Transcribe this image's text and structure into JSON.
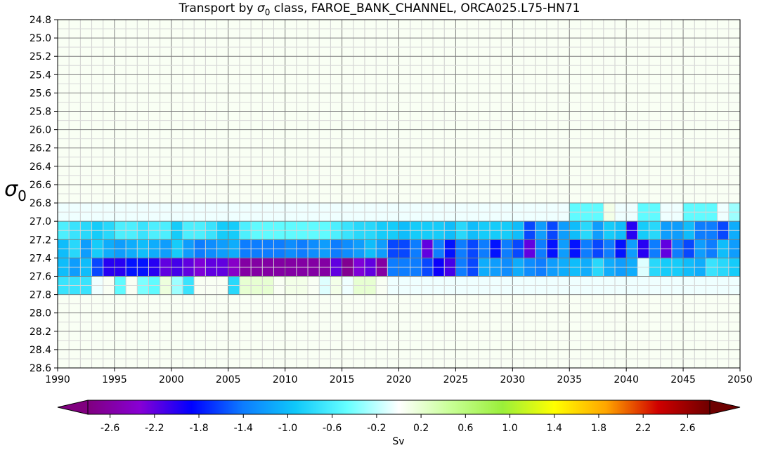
{
  "chart_data": {
    "type": "heatmap",
    "title_prefix": "Transport by ",
    "title_symbol": "σ",
    "title_sub": "0",
    "title_suffix": " class, FAROE_BANK_CHANNEL, ORCA025.L75-HN71",
    "ylabel_symbol": "σ",
    "ylabel_sub": "0",
    "x_ticks": [
      1990,
      1995,
      2000,
      2005,
      2010,
      2015,
      2020,
      2025,
      2030,
      2035,
      2040,
      2045,
      2050
    ],
    "xlim": [
      1990,
      2050
    ],
    "y_ticks": [
      24.8,
      25.0,
      25.2,
      25.4,
      25.6,
      25.8,
      26.0,
      26.2,
      26.4,
      26.6,
      26.8,
      27.0,
      27.2,
      27.4,
      27.6,
      27.8,
      28.0,
      28.2,
      28.4,
      28.6
    ],
    "ylim": [
      24.8,
      28.6
    ],
    "y_inverted": true,
    "grid": true,
    "years": [
      1990,
      1991,
      1992,
      1993,
      1994,
      1995,
      1996,
      1997,
      1998,
      1999,
      2000,
      2001,
      2002,
      2003,
      2004,
      2005,
      2006,
      2007,
      2008,
      2009,
      2010,
      2011,
      2012,
      2013,
      2014,
      2015,
      2016,
      2017,
      2018,
      2019,
      2020,
      2021,
      2022,
      2023,
      2024,
      2025,
      2026,
      2027,
      2028,
      2029,
      2030,
      2031,
      2032,
      2033,
      2034,
      2035,
      2036,
      2037,
      2038,
      2039,
      2040,
      2041,
      2042,
      2043,
      2044,
      2045,
      2046,
      2047,
      2048,
      2049
    ],
    "density_bins": [
      "26.8-27.0",
      "27.0-27.2",
      "27.2-27.4",
      "27.4-27.6",
      "27.6-27.8"
    ],
    "values": [
      [
        -0.05,
        -0.05,
        -0.05,
        -0.05,
        -0.05,
        -0.05,
        -0.05,
        -0.05,
        -0.05,
        -0.05,
        -0.05,
        -0.05,
        -0.05,
        -0.05,
        -0.05,
        -0.05,
        -0.05,
        -0.05,
        -0.05,
        -0.05,
        -0.05,
        -0.05,
        -0.05,
        -0.05,
        -0.05,
        -0.05,
        -0.05,
        -0.05,
        -0.05,
        -0.05,
        -0.05,
        -0.05,
        -0.05,
        -0.05,
        -0.05,
        -0.05,
        -0.05,
        -0.05,
        -0.05,
        -0.05,
        -0.05,
        -0.05,
        -0.05,
        -0.05,
        -0.05,
        -0.5,
        -0.5,
        -0.5,
        0.1,
        -0.05,
        -0.05,
        -0.5,
        -0.5,
        -0.05,
        -0.05,
        -0.5,
        -0.5,
        -0.5,
        -0.05,
        -0.3
      ],
      [
        -0.6,
        -0.7,
        -0.8,
        -0.9,
        -0.8,
        -0.6,
        -0.6,
        -0.7,
        -0.6,
        -0.6,
        -0.9,
        -0.6,
        -0.6,
        -0.7,
        -0.9,
        -0.9,
        -0.6,
        -0.5,
        -0.5,
        -0.5,
        -0.5,
        -0.5,
        -0.5,
        -0.5,
        -0.6,
        -0.7,
        -0.8,
        -0.8,
        -0.9,
        -0.9,
        -1.0,
        -0.9,
        -0.9,
        -0.9,
        -1.0,
        -0.8,
        -1.0,
        -0.9,
        -0.9,
        -0.9,
        -1.0,
        -1.6,
        -1.2,
        -1.6,
        -1.2,
        -1.0,
        -0.8,
        -1.2,
        -0.9,
        -1.0,
        -2.0,
        -0.9,
        -0.8,
        -1.2,
        -1.2,
        -1.0,
        -1.4,
        -1.4,
        -1.6,
        -1.1
      ],
      [
        -1.0,
        -0.8,
        -1.2,
        -0.9,
        -1.1,
        -1.2,
        -1.1,
        -1.0,
        -1.1,
        -1.2,
        -0.9,
        -1.2,
        -1.4,
        -1.3,
        -1.2,
        -1.1,
        -1.4,
        -1.4,
        -1.4,
        -1.4,
        -1.3,
        -1.4,
        -1.3,
        -1.2,
        -1.4,
        -1.3,
        -1.2,
        -1.0,
        -1.2,
        -1.6,
        -1.6,
        -1.4,
        -2.2,
        -1.4,
        -1.8,
        -1.4,
        -1.6,
        -1.4,
        -1.8,
        -1.4,
        -1.6,
        -2.2,
        -1.4,
        -1.8,
        -1.2,
        -1.8,
        -1.4,
        -1.6,
        -1.4,
        -1.8,
        -1.2,
        -2.0,
        -1.4,
        -2.2,
        -1.4,
        -1.6,
        -1.2,
        -1.4,
        -1.0,
        -1.2
      ],
      [
        -1.0,
        -1.2,
        -1.0,
        -1.6,
        -2.0,
        -2.0,
        -1.8,
        -1.8,
        -2.0,
        -2.2,
        -2.1,
        -2.2,
        -2.3,
        -2.2,
        -2.2,
        -2.4,
        -2.6,
        -2.6,
        -2.6,
        -2.6,
        -2.6,
        -2.6,
        -2.6,
        -2.6,
        -2.2,
        -2.7,
        -2.3,
        -2.2,
        -2.6,
        -1.4,
        -1.4,
        -1.4,
        -1.6,
        -1.9,
        -2.1,
        -1.4,
        -1.6,
        -1.1,
        -1.2,
        -1.3,
        -1.1,
        -1.3,
        -1.4,
        -1.2,
        -1.1,
        -1.0,
        -1.1,
        -0.8,
        -1.1,
        -1.2,
        -1.1,
        -0.1,
        -0.8,
        -0.9,
        -0.9,
        -1.0,
        -1.1,
        -0.7,
        -0.8,
        -0.9
      ],
      [
        -0.7,
        -0.7,
        -0.7,
        -0.05,
        0.05,
        -0.5,
        0.05,
        -0.4,
        -0.5,
        0.15,
        -0.3,
        -0.7,
        0.05,
        0.05,
        0.05,
        -0.8,
        0.2,
        0.2,
        0.2,
        0.05,
        0.1,
        0.1,
        0.05,
        -0.1,
        0.1,
        -0.05,
        0.2,
        0.2,
        0.05,
        -0.05,
        -0.05,
        -0.05,
        -0.05,
        -0.05,
        -0.05,
        -0.05,
        -0.05,
        -0.05,
        -0.05,
        -0.05,
        -0.05,
        -0.05,
        -0.05,
        -0.05,
        -0.05,
        -0.05,
        -0.05,
        -0.05,
        -0.05,
        -0.05,
        -0.05,
        -0.05,
        -0.05,
        -0.05,
        -0.05,
        -0.05,
        -0.05,
        -0.05,
        -0.05,
        -0.05
      ]
    ],
    "colorbar": {
      "label": "Sv",
      "vmin": -2.8,
      "vmax": 2.8,
      "ticks": [
        -2.6,
        -2.2,
        -1.8,
        -1.4,
        -1.0,
        -0.6,
        -0.2,
        0.2,
        0.6,
        1.0,
        1.4,
        1.8,
        2.2,
        2.6
      ],
      "tick_labels": [
        "-2.6",
        "-2.2",
        "-1.8",
        "-1.4",
        "-1.0",
        "-0.6",
        "-0.2",
        "0.2",
        "0.6",
        "1.0",
        "1.4",
        "1.8",
        "2.2",
        "2.6"
      ],
      "colors": [
        "#80007f",
        "#8800d4",
        "#0000ff",
        "#0d7dff",
        "#0fc8fa",
        "#66ffff",
        "#ffffff",
        "#c8ff96",
        "#9aef3a",
        "#ffff00",
        "#ffa500",
        "#d00000",
        "#6e0000"
      ],
      "extend": "both"
    }
  }
}
